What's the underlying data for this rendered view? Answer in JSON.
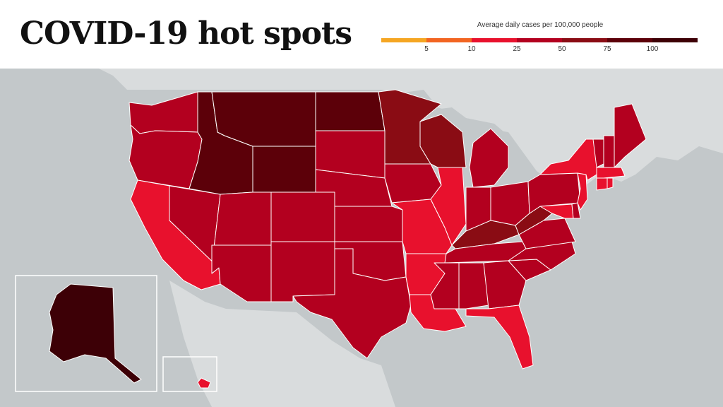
{
  "title": "COVID-19 hot spots",
  "legend": {
    "title": "Average daily cases per 100,000 people",
    "ticks": [
      "5",
      "10",
      "25",
      "50",
      "75",
      "100"
    ],
    "colors": [
      "#f5a623",
      "#f26522",
      "#e8112d",
      "#b3001f",
      "#8a0c14",
      "#5c0009",
      "#3d0006"
    ]
  },
  "colors": {
    "background": "#c3c8ca",
    "land": "#d9dcdd",
    "water": "#c3c8ca",
    "bright_red": "#e8112d",
    "red": "#b3001f",
    "dark_red": "#8a0c14",
    "darker_red": "#5c0009",
    "darkest": "#3d0006"
  },
  "states": [
    {
      "name": "WA",
      "color": "#b3001f"
    },
    {
      "name": "OR",
      "color": "#b3001f"
    },
    {
      "name": "CA",
      "color": "#e8112d"
    },
    {
      "name": "NV",
      "color": "#b3001f"
    },
    {
      "name": "ID",
      "color": "#5c0009"
    },
    {
      "name": "MT",
      "color": "#5c0009"
    },
    {
      "name": "WY",
      "color": "#5c0009"
    },
    {
      "name": "UT",
      "color": "#b3001f"
    },
    {
      "name": "AZ",
      "color": "#b3001f"
    },
    {
      "name": "CO",
      "color": "#b3001f"
    },
    {
      "name": "NM",
      "color": "#b3001f"
    },
    {
      "name": "ND",
      "color": "#5c0009"
    },
    {
      "name": "SD",
      "color": "#b3001f"
    },
    {
      "name": "NE",
      "color": "#b3001f"
    },
    {
      "name": "KS",
      "color": "#b3001f"
    },
    {
      "name": "OK",
      "color": "#b3001f"
    },
    {
      "name": "TX",
      "color": "#b3001f"
    },
    {
      "name": "MN",
      "color": "#8a0c14"
    },
    {
      "name": "IA",
      "color": "#b3001f"
    },
    {
      "name": "MO",
      "color": "#e8112d"
    },
    {
      "name": "AR",
      "color": "#e8112d"
    },
    {
      "name": "LA",
      "color": "#e8112d"
    },
    {
      "name": "WI",
      "color": "#8a0c14"
    },
    {
      "name": "IL",
      "color": "#e8112d"
    },
    {
      "name": "MI",
      "color": "#b3001f"
    },
    {
      "name": "IN",
      "color": "#b3001f"
    },
    {
      "name": "OH",
      "color": "#b3001f"
    },
    {
      "name": "KY",
      "color": "#8a0c14"
    },
    {
      "name": "TN",
      "color": "#b3001f"
    },
    {
      "name": "MS",
      "color": "#b3001f"
    },
    {
      "name": "AL",
      "color": "#b3001f"
    },
    {
      "name": "GA",
      "color": "#b3001f"
    },
    {
      "name": "FL",
      "color": "#e8112d"
    },
    {
      "name": "SC",
      "color": "#b3001f"
    },
    {
      "name": "NC",
      "color": "#b3001f"
    },
    {
      "name": "VA",
      "color": "#b3001f"
    },
    {
      "name": "WV",
      "color": "#8a0c14"
    },
    {
      "name": "PA",
      "color": "#b3001f"
    },
    {
      "name": "NY",
      "color": "#e8112d"
    },
    {
      "name": "NJ",
      "color": "#e8112d"
    },
    {
      "name": "DE",
      "color": "#b3001f"
    },
    {
      "name": "MD",
      "color": "#e8112d"
    },
    {
      "name": "VT",
      "color": "#b3001f"
    },
    {
      "name": "NH",
      "color": "#b3001f"
    },
    {
      "name": "ME",
      "color": "#b3001f"
    },
    {
      "name": "MA",
      "color": "#e8112d"
    },
    {
      "name": "CT",
      "color": "#e8112d"
    },
    {
      "name": "RI",
      "color": "#e8112d"
    },
    {
      "name": "AK",
      "color": "#3d0006"
    },
    {
      "name": "HI",
      "color": "#e8112d"
    }
  ]
}
